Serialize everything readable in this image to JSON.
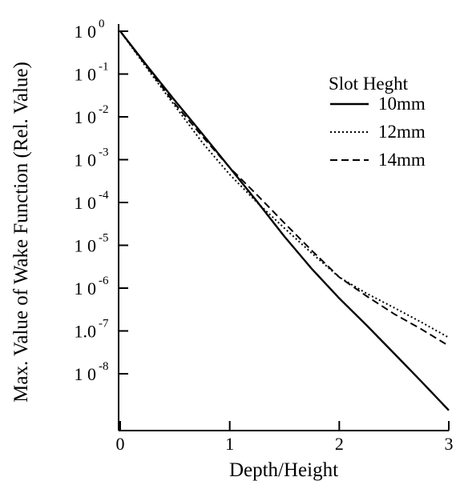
{
  "chart_data": {
    "type": "line",
    "title": "",
    "xlabel": "Depth/Height",
    "ylabel": "Max. Value of Wake Function (Rel. Value)",
    "xlim": [
      0,
      3
    ],
    "ylim_log10": [
      -8.8,
      0
    ],
    "y_scale": "log",
    "grid": false,
    "legend_position": "top-right",
    "legend_title": "Slot Heght",
    "x_ticks": [
      {
        "value": 0,
        "label": "0"
      },
      {
        "value": 1,
        "label": "1"
      },
      {
        "value": 2,
        "label": "2"
      },
      {
        "value": 3,
        "label": "3"
      }
    ],
    "y_ticks": [
      {
        "exp": 0,
        "base": "1 0",
        "sup": "0"
      },
      {
        "exp": -1,
        "base": "1 0",
        "sup": "-1"
      },
      {
        "exp": -2,
        "base": "1 0",
        "sup": "-2"
      },
      {
        "exp": -3,
        "base": "1 0",
        "sup": "-3"
      },
      {
        "exp": -4,
        "base": "1 0",
        "sup": "-4"
      },
      {
        "exp": -5,
        "base": "1 0",
        "sup": "-5"
      },
      {
        "exp": -6,
        "base": "1 0",
        "sup": "-6"
      },
      {
        "exp": -7,
        "base": "1.0",
        "sup": "-7"
      },
      {
        "exp": -8,
        "base": "1 0",
        "sup": "-8"
      }
    ],
    "series": [
      {
        "name": "10mm",
        "style": "solid",
        "x": [
          0.0,
          0.25,
          0.5,
          0.75,
          1.0,
          1.25,
          1.5,
          1.75,
          2.0,
          2.25,
          2.5,
          2.75,
          3.0
        ],
        "y": [
          1.0,
          0.15,
          0.024,
          0.004,
          0.00065,
          0.000105,
          1.6e-05,
          2.8e-06,
          5.8e-07,
          1.35e-07,
          3e-08,
          6.6e-09,
          1.4e-09
        ]
      },
      {
        "name": "12mm",
        "style": "dotted",
        "x": [
          0.0,
          0.25,
          0.5,
          0.75,
          1.0,
          1.25,
          1.5,
          1.75,
          2.0,
          2.25,
          2.5,
          2.75,
          3.0
        ],
        "y": [
          1.0,
          0.13,
          0.018,
          0.0025,
          0.00045,
          0.0001,
          2.5e-05,
          6.5e-06,
          1.8e-06,
          7.5e-07,
          3.5e-07,
          1.6e-07,
          7e-08
        ]
      },
      {
        "name": "14mm",
        "style": "dashed",
        "x": [
          0.0,
          0.25,
          0.5,
          0.75,
          1.0,
          1.25,
          1.5,
          1.75,
          2.0,
          2.25,
          2.5,
          2.75,
          3.0
        ],
        "y": [
          1.0,
          0.14,
          0.02,
          0.0035,
          0.00065,
          0.00015,
          3.3e-05,
          7.5e-06,
          1.8e-06,
          6.5e-07,
          2.5e-07,
          1.1e-07,
          4.5e-08
        ]
      }
    ]
  }
}
